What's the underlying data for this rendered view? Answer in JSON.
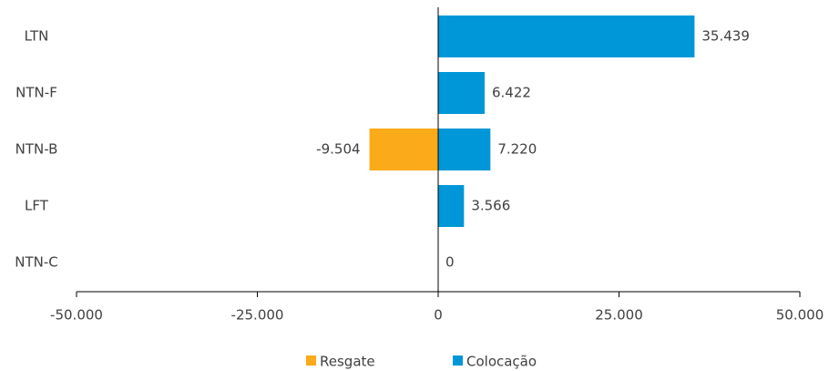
{
  "chart_data": {
    "type": "hbar",
    "categories": [
      "LTN",
      "NTN-F",
      "NTN-B",
      "LFT",
      "NTN-C"
    ],
    "series": [
      {
        "name": "Resgate",
        "color": "#fbaa19",
        "values": [
          null,
          null,
          -9504,
          null,
          null
        ],
        "value_labels": [
          null,
          null,
          "-9.504",
          null,
          null
        ]
      },
      {
        "name": "Colocação",
        "color": "#0097d8",
        "values": [
          35439,
          6422,
          7220,
          3566,
          0
        ],
        "value_labels": [
          "35.439",
          "6.422",
          "7.220",
          "3.566",
          "0"
        ]
      }
    ],
    "xlim": [
      -50000,
      50000
    ],
    "xticks": [
      {
        "value": -50000,
        "label": "-50.000"
      },
      {
        "value": -25000,
        "label": "-25.000"
      },
      0,
      {
        "value": 25000,
        "label": "25.000"
      },
      {
        "value": 50000,
        "label": "50.000"
      }
    ],
    "legend": "bottom"
  }
}
